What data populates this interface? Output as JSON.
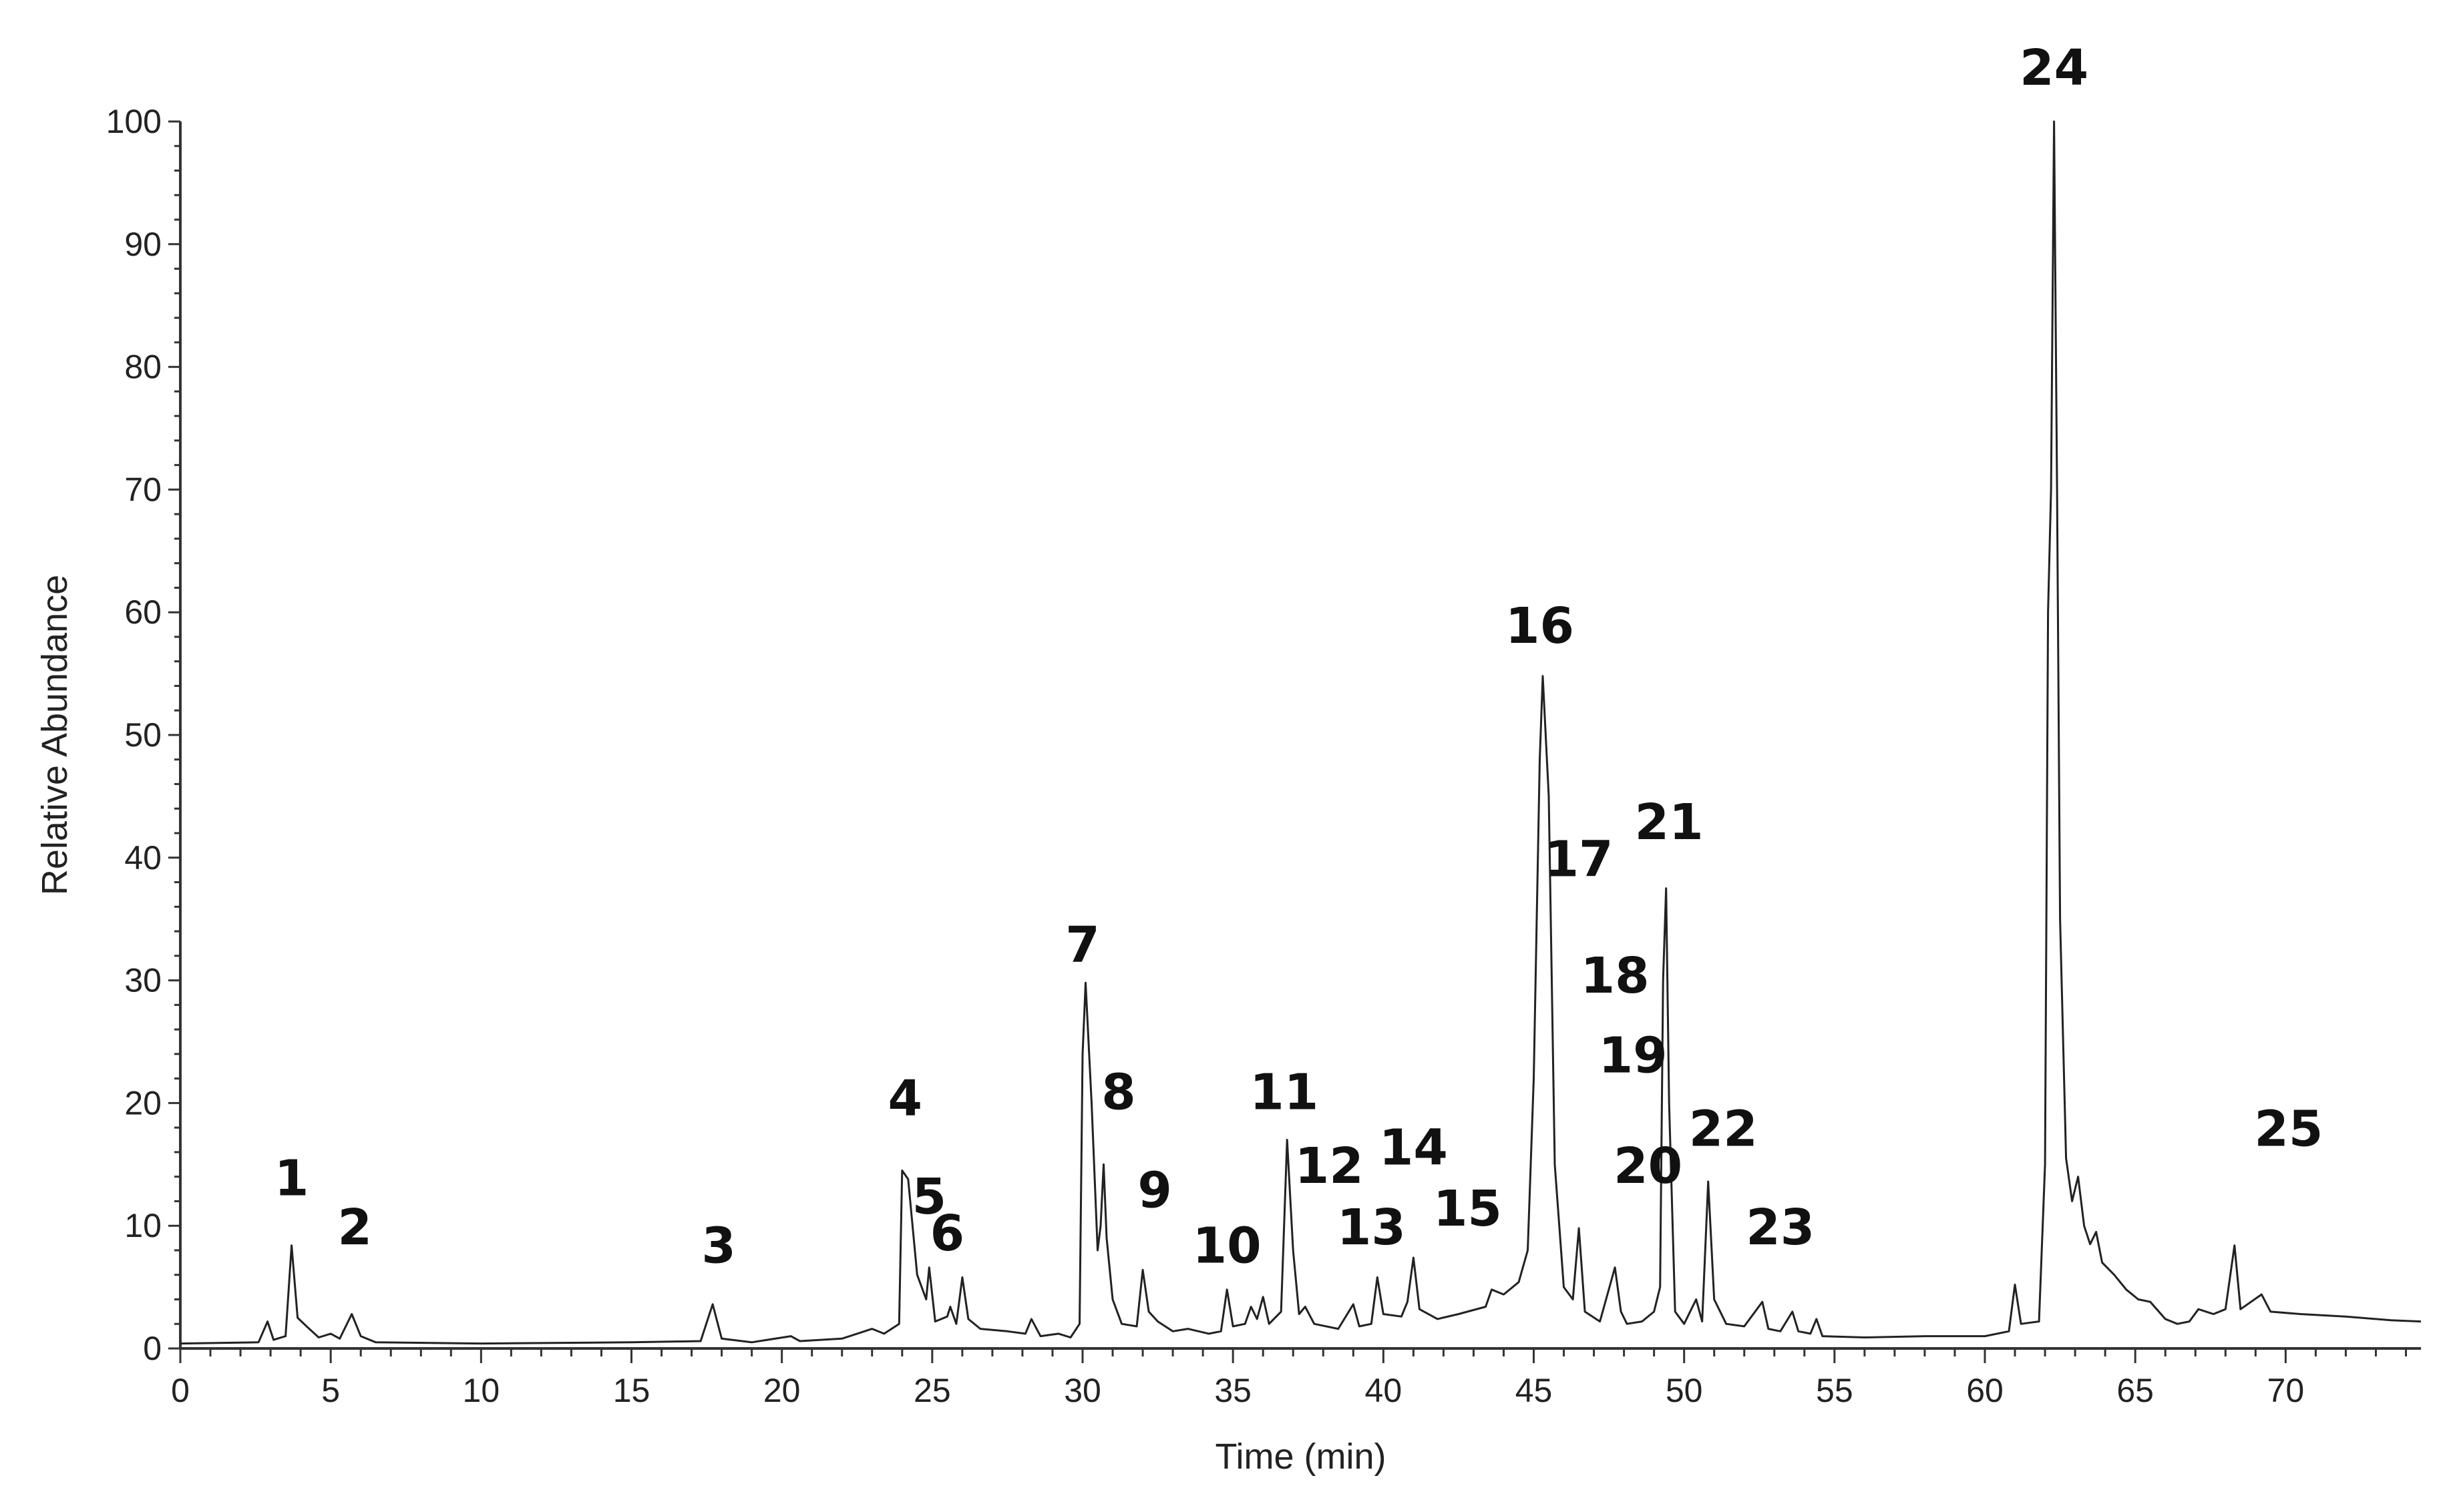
{
  "chart_data": {
    "type": "line",
    "title": "",
    "xlabel": "Time (min)",
    "ylabel": "Relative Abundance",
    "xlim": [
      0,
      74.5
    ],
    "ylim": [
      0,
      100
    ],
    "x_ticks": [
      "0",
      "5",
      "10",
      "15",
      "20",
      "25",
      "30",
      "35",
      "40",
      "45",
      "50",
      "55",
      "60",
      "65",
      "70"
    ],
    "y_ticks": [
      "0",
      "10",
      "20",
      "30",
      "40",
      "50",
      "60",
      "70",
      "80",
      "90",
      "100"
    ],
    "grid": false,
    "line_color": "#222222",
    "series": [
      {
        "points": [
          [
            0,
            0.4
          ],
          [
            2.6,
            0.5
          ],
          [
            2.9,
            2.2
          ],
          [
            3.1,
            0.7
          ],
          [
            3.5,
            1.0
          ],
          [
            3.7,
            8.4
          ],
          [
            3.9,
            2.5
          ],
          [
            4.2,
            1.8
          ],
          [
            4.6,
            0.9
          ],
          [
            5.0,
            1.2
          ],
          [
            5.3,
            0.8
          ],
          [
            5.7,
            2.8
          ],
          [
            6.0,
            1.0
          ],
          [
            6.5,
            0.5
          ],
          [
            10,
            0.4
          ],
          [
            15,
            0.5
          ],
          [
            17.3,
            0.6
          ],
          [
            17.7,
            3.6
          ],
          [
            18.0,
            0.8
          ],
          [
            19,
            0.5
          ],
          [
            20.3,
            1.0
          ],
          [
            20.6,
            0.6
          ],
          [
            22,
            0.8
          ],
          [
            23.0,
            1.6
          ],
          [
            23.4,
            1.2
          ],
          [
            23.9,
            2.0
          ],
          [
            24.0,
            14.5
          ],
          [
            24.2,
            13.8
          ],
          [
            24.5,
            6.0
          ],
          [
            24.8,
            4.0
          ],
          [
            24.9,
            6.6
          ],
          [
            25.1,
            2.2
          ],
          [
            25.5,
            2.6
          ],
          [
            25.6,
            3.4
          ],
          [
            25.8,
            2.0
          ],
          [
            26.0,
            5.8
          ],
          [
            26.2,
            2.4
          ],
          [
            26.6,
            1.6
          ],
          [
            27.5,
            1.4
          ],
          [
            28.1,
            1.2
          ],
          [
            28.3,
            2.4
          ],
          [
            28.6,
            1.0
          ],
          [
            29.2,
            1.2
          ],
          [
            29.6,
            0.9
          ],
          [
            29.9,
            2.0
          ],
          [
            30.0,
            24.0
          ],
          [
            30.1,
            29.8
          ],
          [
            30.3,
            20.0
          ],
          [
            30.5,
            8.0
          ],
          [
            30.6,
            10.0
          ],
          [
            30.7,
            15.0
          ],
          [
            30.8,
            9.0
          ],
          [
            31.0,
            4.0
          ],
          [
            31.3,
            2.0
          ],
          [
            31.8,
            1.8
          ],
          [
            32.0,
            6.4
          ],
          [
            32.2,
            3.0
          ],
          [
            32.5,
            2.2
          ],
          [
            33.0,
            1.4
          ],
          [
            33.5,
            1.6
          ],
          [
            34.2,
            1.2
          ],
          [
            34.6,
            1.4
          ],
          [
            34.8,
            4.8
          ],
          [
            35.0,
            1.8
          ],
          [
            35.4,
            2.0
          ],
          [
            35.6,
            3.4
          ],
          [
            35.8,
            2.4
          ],
          [
            36.0,
            4.2
          ],
          [
            36.2,
            2.0
          ],
          [
            36.6,
            3.0
          ],
          [
            36.8,
            17.0
          ],
          [
            37.0,
            8.0
          ],
          [
            37.2,
            2.8
          ],
          [
            37.4,
            3.4
          ],
          [
            37.7,
            2.0
          ],
          [
            38.5,
            1.6
          ],
          [
            39.0,
            3.6
          ],
          [
            39.2,
            1.8
          ],
          [
            39.6,
            2.0
          ],
          [
            39.8,
            5.8
          ],
          [
            40.0,
            2.8
          ],
          [
            40.6,
            2.6
          ],
          [
            40.8,
            3.8
          ],
          [
            41.0,
            7.4
          ],
          [
            41.2,
            3.2
          ],
          [
            41.8,
            2.4
          ],
          [
            42.5,
            2.8
          ],
          [
            43.4,
            3.4
          ],
          [
            43.6,
            4.8
          ],
          [
            44.0,
            4.4
          ],
          [
            44.5,
            5.4
          ],
          [
            44.8,
            8.0
          ],
          [
            45.0,
            22.0
          ],
          [
            45.2,
            48.0
          ],
          [
            45.3,
            54.8
          ],
          [
            45.5,
            45.0
          ],
          [
            45.7,
            15.0
          ],
          [
            46.0,
            5.0
          ],
          [
            46.3,
            4.0
          ],
          [
            46.5,
            9.8
          ],
          [
            46.7,
            3.0
          ],
          [
            47.2,
            2.2
          ],
          [
            47.7,
            6.6
          ],
          [
            47.9,
            3.0
          ],
          [
            48.1,
            2.0
          ],
          [
            48.6,
            2.2
          ],
          [
            49.0,
            3.0
          ],
          [
            49.2,
            5.0
          ],
          [
            49.3,
            30.0
          ],
          [
            49.4,
            37.5
          ],
          [
            49.5,
            20.0
          ],
          [
            49.7,
            3.0
          ],
          [
            50.0,
            2.0
          ],
          [
            50.4,
            4.0
          ],
          [
            50.6,
            2.2
          ],
          [
            50.8,
            13.6
          ],
          [
            51.0,
            4.0
          ],
          [
            51.4,
            2.0
          ],
          [
            52.0,
            1.8
          ],
          [
            52.6,
            3.8
          ],
          [
            52.8,
            1.6
          ],
          [
            53.2,
            1.4
          ],
          [
            53.6,
            3.0
          ],
          [
            53.8,
            1.4
          ],
          [
            54.2,
            1.2
          ],
          [
            54.4,
            2.4
          ],
          [
            54.6,
            1.0
          ],
          [
            56,
            0.9
          ],
          [
            58,
            1.0
          ],
          [
            60,
            1.0
          ],
          [
            60.8,
            1.4
          ],
          [
            61.0,
            5.2
          ],
          [
            61.2,
            2.0
          ],
          [
            61.8,
            2.2
          ],
          [
            62.0,
            15.0
          ],
          [
            62.1,
            60.0
          ],
          [
            62.2,
            70.0
          ],
          [
            62.3,
            100.0
          ],
          [
            62.4,
            70.0
          ],
          [
            62.5,
            35.0
          ],
          [
            62.7,
            15.5
          ],
          [
            62.9,
            12.0
          ],
          [
            63.1,
            14.0
          ],
          [
            63.3,
            10.0
          ],
          [
            63.5,
            8.5
          ],
          [
            63.7,
            9.5
          ],
          [
            63.9,
            7.0
          ],
          [
            64.3,
            6.0
          ],
          [
            64.7,
            4.8
          ],
          [
            65.1,
            4.0
          ],
          [
            65.5,
            3.8
          ],
          [
            66.0,
            2.4
          ],
          [
            66.4,
            2.0
          ],
          [
            66.8,
            2.2
          ],
          [
            67.1,
            3.2
          ],
          [
            67.6,
            2.8
          ],
          [
            68.0,
            3.2
          ],
          [
            68.3,
            8.4
          ],
          [
            68.5,
            3.2
          ],
          [
            69.2,
            4.4
          ],
          [
            69.5,
            3.0
          ],
          [
            70.5,
            2.8
          ],
          [
            72,
            2.6
          ],
          [
            73.5,
            2.3
          ],
          [
            74.5,
            2.2
          ]
        ]
      }
    ],
    "annotations": [
      {
        "text": "1",
        "x": 3.7,
        "y": 12.5
      },
      {
        "text": "2",
        "x": 5.8,
        "y": 8.5
      },
      {
        "text": "3",
        "x": 17.9,
        "y": 7.0
      },
      {
        "text": "4",
        "x": 24.1,
        "y": 19.0
      },
      {
        "text": "5",
        "x": 24.9,
        "y": 11.0
      },
      {
        "text": "6",
        "x": 25.5,
        "y": 8.0
      },
      {
        "text": "7",
        "x": 30.0,
        "y": 31.5
      },
      {
        "text": "8",
        "x": 31.2,
        "y": 19.5
      },
      {
        "text": "9",
        "x": 32.4,
        "y": 11.5
      },
      {
        "text": "10",
        "x": 34.8,
        "y": 7.0
      },
      {
        "text": "11",
        "x": 36.7,
        "y": 19.5
      },
      {
        "text": "12",
        "x": 38.2,
        "y": 13.5
      },
      {
        "text": "13",
        "x": 39.6,
        "y": 8.5
      },
      {
        "text": "14",
        "x": 41.0,
        "y": 15.0
      },
      {
        "text": "15",
        "x": 42.8,
        "y": 10.0
      },
      {
        "text": "16",
        "x": 45.2,
        "y": 57.5
      },
      {
        "text": "17",
        "x": 46.5,
        "y": 38.5
      },
      {
        "text": "18",
        "x": 47.7,
        "y": 29.0
      },
      {
        "text": "19",
        "x": 48.3,
        "y": 22.5
      },
      {
        "text": "20",
        "x": 48.8,
        "y": 13.5
      },
      {
        "text": "21",
        "x": 49.5,
        "y": 41.5
      },
      {
        "text": "22",
        "x": 51.3,
        "y": 16.5
      },
      {
        "text": "23",
        "x": 53.2,
        "y": 8.5
      },
      {
        "text": "24",
        "x": 62.3,
        "y": 103.0
      },
      {
        "text": "25",
        "x": 70.1,
        "y": 16.5
      }
    ]
  }
}
